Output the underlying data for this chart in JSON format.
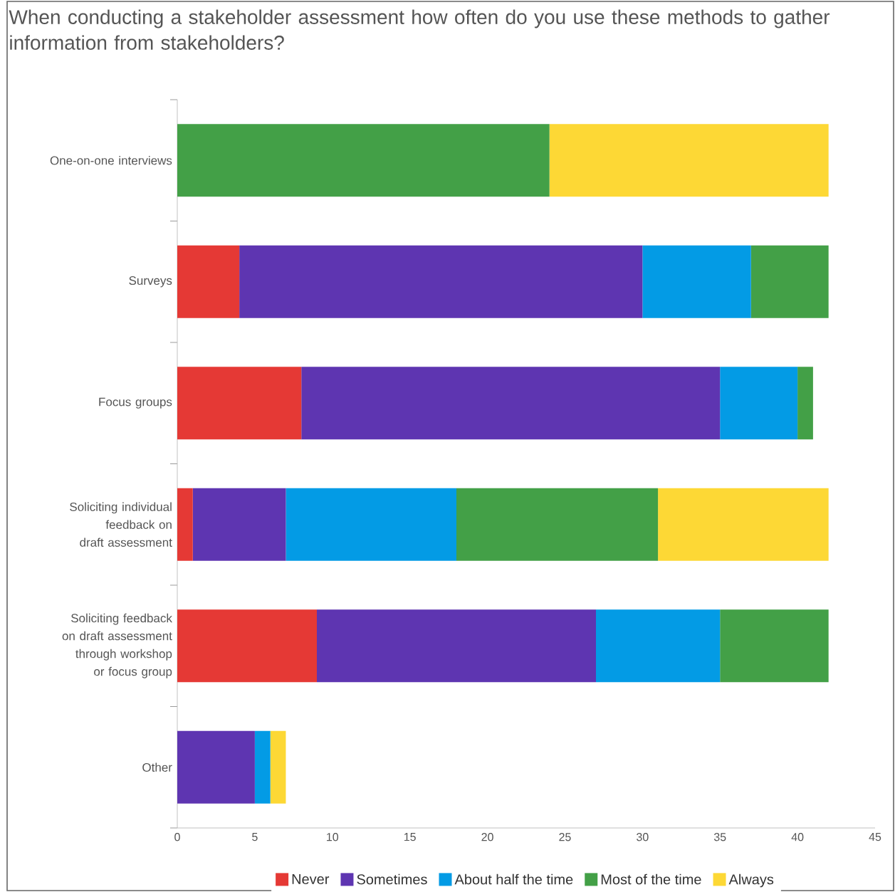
{
  "chart_data": {
    "type": "bar",
    "orientation": "horizontal",
    "stacked": true,
    "title": "When conducting a stakeholder assessment how often do you use these methods to gather information from stakeholders?",
    "categories": [
      "One-on-one interviews",
      "Surveys",
      "Focus groups",
      "Soliciting individual feedback on draft assessment",
      "Soliciting feedback on draft assessment through workshop or focus group",
      "Other"
    ],
    "series": [
      {
        "name": "Never",
        "color": "#e53935",
        "values": [
          0,
          4,
          8,
          1,
          9,
          0
        ]
      },
      {
        "name": "Sometimes",
        "color": "#5e35b1",
        "values": [
          0,
          26,
          27,
          6,
          18,
          5
        ]
      },
      {
        "name": "About half the time",
        "color": "#039be5",
        "values": [
          0,
          7,
          5,
          11,
          8,
          1
        ]
      },
      {
        "name": "Most of the time",
        "color": "#43a047",
        "values": [
          24,
          5,
          1,
          13,
          7,
          0
        ]
      },
      {
        "name": "Always",
        "color": "#fdd835",
        "values": [
          18,
          0,
          0,
          11,
          0,
          1
        ]
      }
    ],
    "xlim": [
      0,
      45
    ],
    "xticks": [
      0,
      5,
      10,
      15,
      20,
      25,
      30,
      35,
      40,
      45
    ],
    "grid": false,
    "legend": "bottom"
  }
}
